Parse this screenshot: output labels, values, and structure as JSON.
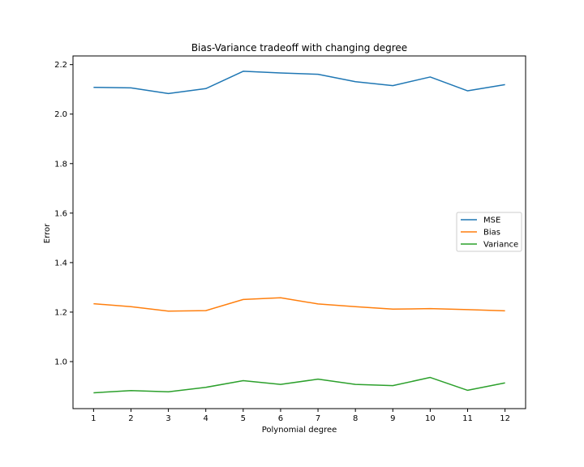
{
  "chart_data": {
    "type": "line",
    "title": "Bias-Variance tradeoff with changing degree",
    "xlabel": "Polynomial degree",
    "ylabel": "Error",
    "x": [
      1,
      2,
      3,
      4,
      5,
      6,
      7,
      8,
      9,
      10,
      11,
      12
    ],
    "xticks": [
      "1",
      "2",
      "3",
      "4",
      "5",
      "6",
      "7",
      "8",
      "9",
      "10",
      "11",
      "12"
    ],
    "yticks": [
      1.0,
      1.2,
      1.4,
      1.6,
      1.8,
      2.0,
      2.2
    ],
    "ytick_labels": [
      "1.0",
      "1.2",
      "1.4",
      "1.6",
      "1.8",
      "2.0",
      "2.2"
    ],
    "xlim": [
      0.45,
      12.55
    ],
    "ylim": [
      0.81,
      2.235
    ],
    "grid": false,
    "legend_position": "center-right",
    "series": [
      {
        "name": "MSE",
        "color": "#1f77b4",
        "values": [
          2.108,
          2.106,
          2.083,
          2.103,
          2.173,
          2.166,
          2.161,
          2.131,
          2.115,
          2.15,
          2.094,
          2.119
        ]
      },
      {
        "name": "Bias",
        "color": "#ff7f0e",
        "values": [
          1.234,
          1.222,
          1.204,
          1.206,
          1.251,
          1.258,
          1.233,
          1.222,
          1.212,
          1.214,
          1.21,
          1.205
        ]
      },
      {
        "name": "Variance",
        "color": "#2ca02c",
        "values": [
          0.874,
          0.883,
          0.878,
          0.896,
          0.923,
          0.908,
          0.929,
          0.908,
          0.903,
          0.936,
          0.884,
          0.914
        ]
      }
    ]
  }
}
